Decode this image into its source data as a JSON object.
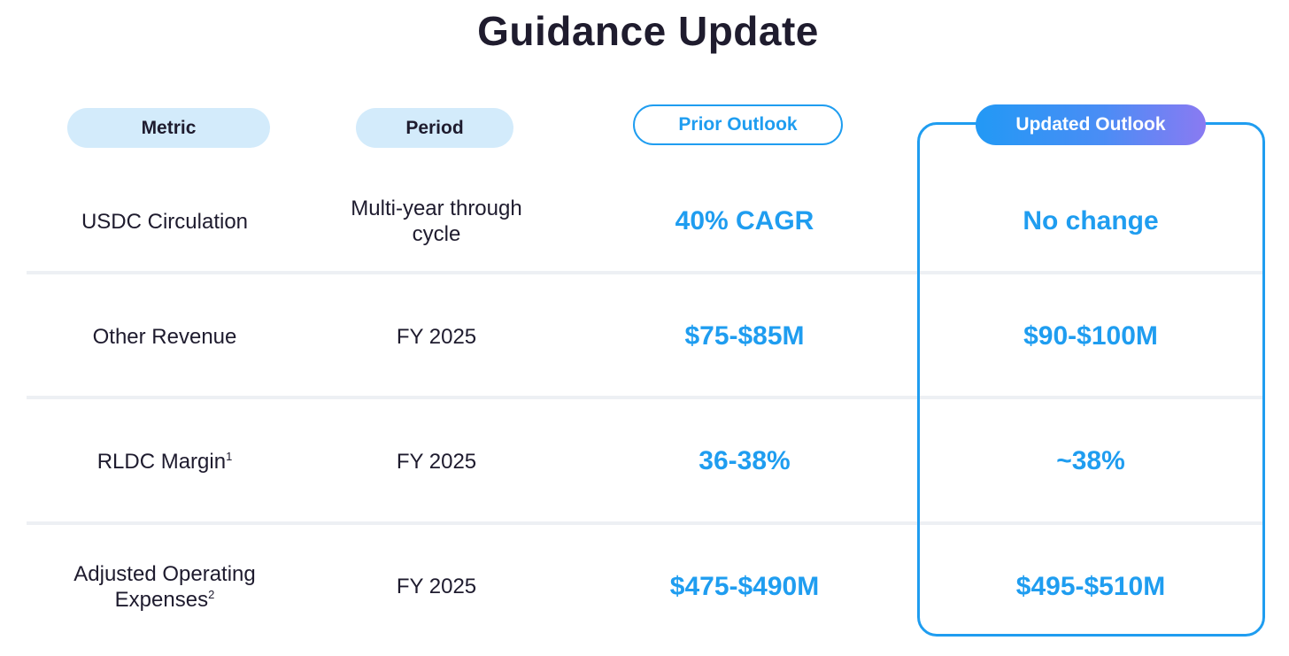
{
  "title": "Guidance Update",
  "headers": {
    "metric": "Metric",
    "period": "Period",
    "prior": "Prior Outlook",
    "updated": "Updated Outlook"
  },
  "rows": [
    {
      "metric": "USDC Circulation",
      "metric_sup": "",
      "period": "Multi-year through cycle",
      "prior": "40% CAGR",
      "updated": "No change"
    },
    {
      "metric": "Other Revenue",
      "metric_sup": "",
      "period": "FY 2025",
      "prior": "$75-$85M",
      "updated": "$90-$100M"
    },
    {
      "metric": "RLDC Margin",
      "metric_sup": "1",
      "period": "FY 2025",
      "prior": "36-38%",
      "updated": "~38%"
    },
    {
      "metric": "Adjusted Operating Expenses",
      "metric_sup": "2",
      "period": "FY 2025",
      "prior": "$475-$490M",
      "updated": "$495-$510M"
    }
  ],
  "colors": {
    "accent": "#1f9df0",
    "header_pill_bg": "#d3ebfb",
    "title_text": "#1f1c2e",
    "divider": "#edf0f4",
    "gradient_start": "#2299f5",
    "gradient_end": "#8a7af2"
  }
}
